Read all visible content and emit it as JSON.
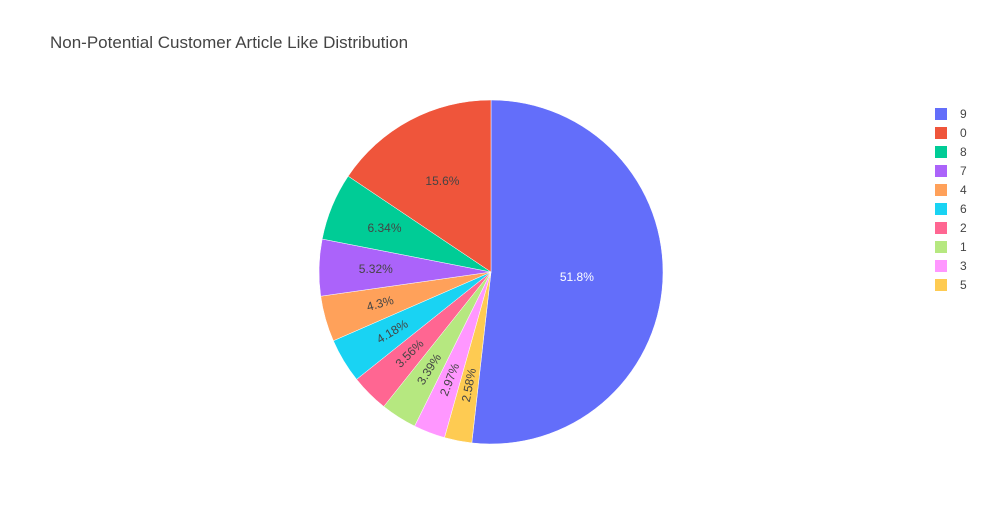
{
  "chart_data": {
    "type": "pie",
    "title": "Non-Potential Customer Article Like Distribution",
    "legend_position": "right",
    "direction": "clockwise",
    "start_angle": "top",
    "slices": [
      {
        "label": "9",
        "percent": 51.8,
        "percent_label": "51.8%",
        "color": "#636efa",
        "text_color": "#ffffff"
      },
      {
        "label": "5",
        "percent": 2.58,
        "percent_label": "2.58%",
        "color": "#fecb52",
        "text_color": "#444444"
      },
      {
        "label": "3",
        "percent": 2.97,
        "percent_label": "2.97%",
        "color": "#ff97ff",
        "text_color": "#444444"
      },
      {
        "label": "1",
        "percent": 3.39,
        "percent_label": "3.39%",
        "color": "#b6e880",
        "text_color": "#444444"
      },
      {
        "label": "2",
        "percent": 3.56,
        "percent_label": "3.56%",
        "color": "#ff6692",
        "text_color": "#444444"
      },
      {
        "label": "6",
        "percent": 4.18,
        "percent_label": "4.18%",
        "color": "#19d3f3",
        "text_color": "#444444"
      },
      {
        "label": "4",
        "percent": 4.3,
        "percent_label": "4.3%",
        "color": "#ffa15a",
        "text_color": "#444444"
      },
      {
        "label": "7",
        "percent": 5.32,
        "percent_label": "5.32%",
        "color": "#ab63fa",
        "text_color": "#444444"
      },
      {
        "label": "8",
        "percent": 6.34,
        "percent_label": "6.34%",
        "color": "#00cc96",
        "text_color": "#444444"
      },
      {
        "label": "0",
        "percent": 15.6,
        "percent_label": "15.6%",
        "color": "#ef553b",
        "text_color": "#444444"
      }
    ],
    "legend_order": [
      "9",
      "0",
      "8",
      "7",
      "4",
      "6",
      "2",
      "1",
      "3",
      "5"
    ]
  }
}
